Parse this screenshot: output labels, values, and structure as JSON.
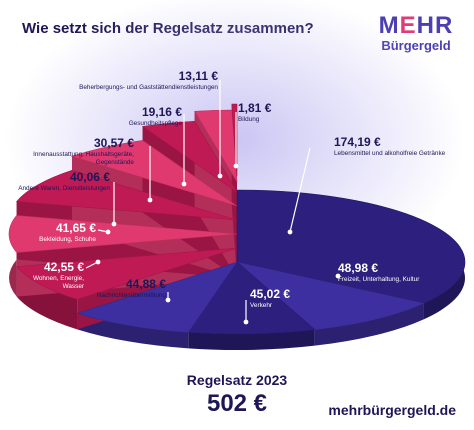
{
  "header": {
    "title": "Wie setzt sich der Regelsatz zusammen?"
  },
  "logo": {
    "line1_m": "M",
    "line1_e": "E",
    "line1_rest": "HR",
    "line2": "Bürgergeld"
  },
  "footer": {
    "label": "Regelsatz 2023",
    "total": "502 €",
    "url": "mehrbürgergeld.de"
  },
  "colors": {
    "title": "#1e1656",
    "blue_dark": "#2c1f7d",
    "blue_light": "#3d2fa0",
    "pink_dark": "#c01a55",
    "pink_light": "#e0396f",
    "glow": "#b9b2f0"
  },
  "chart_data": {
    "type": "pie",
    "title": "Wie setzt sich der Regelsatz zusammen?",
    "total_label": "Regelsatz 2023",
    "total": 502,
    "unit": "€",
    "slices": [
      {
        "value": 174.19,
        "value_label": "174,19 €",
        "label": "Lebensmittel und alkoholfreie Getränke",
        "color": "#2c1f7d"
      },
      {
        "value": 48.98,
        "value_label": "48,98 €",
        "label": "Freizeit, Unterhaltung, Kultur",
        "color": "#3d2fa0"
      },
      {
        "value": 45.02,
        "value_label": "45,02 €",
        "label": "Verkehr",
        "color": "#2c1f7d"
      },
      {
        "value": 44.88,
        "value_label": "44,88 €",
        "label": "Nachrichtenübermittlung",
        "color": "#3d2fa0"
      },
      {
        "value": 42.55,
        "value_label": "42,55 €",
        "label": "Wohnen, Energie, Wasser",
        "color": "#c01a55"
      },
      {
        "value": 41.65,
        "value_label": "41,65 €",
        "label": "Bekleidung, Schuhe",
        "color": "#e0396f"
      },
      {
        "value": 40.06,
        "value_label": "40,06 €",
        "label": "Andere Waren, Dienstleistungen",
        "color": "#c01a55"
      },
      {
        "value": 30.57,
        "value_label": "30,57 €",
        "label": "Innenausstattung, Haushaltsgeräte, Gegenstände",
        "color": "#e0396f"
      },
      {
        "value": 19.16,
        "value_label": "19,16 €",
        "label": "Gesundheitspflege",
        "color": "#c01a55"
      },
      {
        "value": 13.11,
        "value_label": "13,11 €",
        "label": "Beherbergungs- und Gaststättendienstleistungen",
        "color": "#e0396f"
      },
      {
        "value": 1.81,
        "value_label": "1,81 €",
        "label": "Bildung",
        "color": "#c01a55"
      }
    ]
  }
}
